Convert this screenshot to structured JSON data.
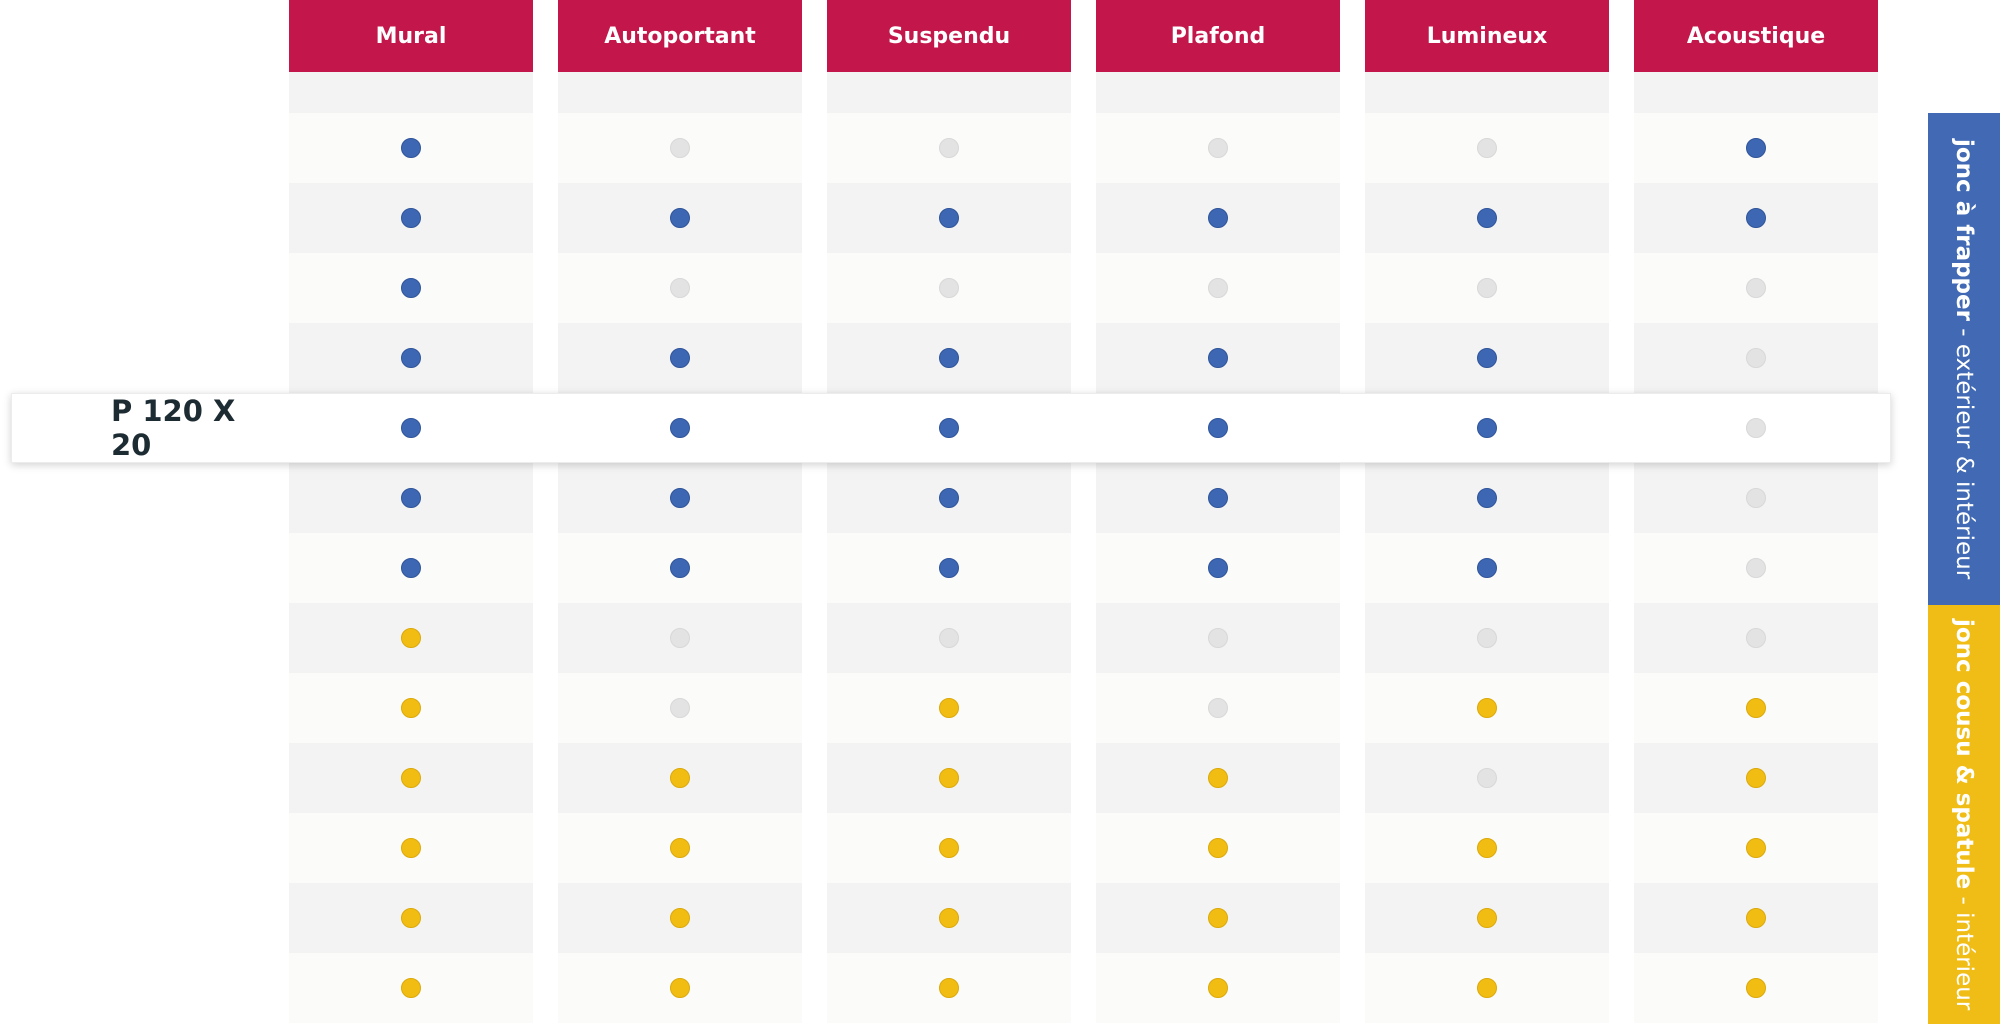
{
  "columns": [
    {
      "label": "Mural",
      "dots": [
        "blue",
        "blue",
        "blue",
        "blue",
        "blue",
        "blue",
        "blue",
        "yellow",
        "yellow",
        "yellow",
        "yellow",
        "yellow",
        "yellow"
      ]
    },
    {
      "label": "Autoportant",
      "dots": [
        "gray",
        "blue",
        "gray",
        "blue",
        "blue",
        "blue",
        "blue",
        "gray",
        "gray",
        "yellow",
        "yellow",
        "yellow",
        "yellow"
      ]
    },
    {
      "label": "Suspendu",
      "dots": [
        "gray",
        "blue",
        "gray",
        "blue",
        "blue",
        "blue",
        "blue",
        "gray",
        "yellow",
        "yellow",
        "yellow",
        "yellow",
        "yellow"
      ]
    },
    {
      "label": "Plafond",
      "dots": [
        "gray",
        "blue",
        "gray",
        "blue",
        "blue",
        "blue",
        "blue",
        "gray",
        "gray",
        "yellow",
        "yellow",
        "yellow",
        "yellow"
      ]
    },
    {
      "label": "Lumineux",
      "dots": [
        "gray",
        "blue",
        "gray",
        "blue",
        "blue",
        "blue",
        "blue",
        "gray",
        "yellow",
        "gray",
        "yellow",
        "yellow",
        "yellow"
      ]
    },
    {
      "label": "Acoustique",
      "dots": [
        "blue",
        "blue",
        "gray",
        "gray",
        "gray",
        "gray",
        "gray",
        "gray",
        "yellow",
        "yellow",
        "yellow",
        "yellow",
        "yellow"
      ]
    }
  ],
  "highlighted_row": {
    "label": "P 120 X 20",
    "row_index": 4
  },
  "bands": {
    "blue": {
      "bold": "jonc à frapper",
      "light": " - extérieur & intérieur"
    },
    "yellow": {
      "bold": "jonc cousu & spatule",
      "light": " - intérieur"
    }
  },
  "colors": {
    "header": "#c3174b",
    "dot_blue": "#3e67b3",
    "dot_yellow": "#f2bd12",
    "dot_gray": "#e3e3e3",
    "band_blue": "#4169b4",
    "band_yellow": "#f0bd16"
  }
}
